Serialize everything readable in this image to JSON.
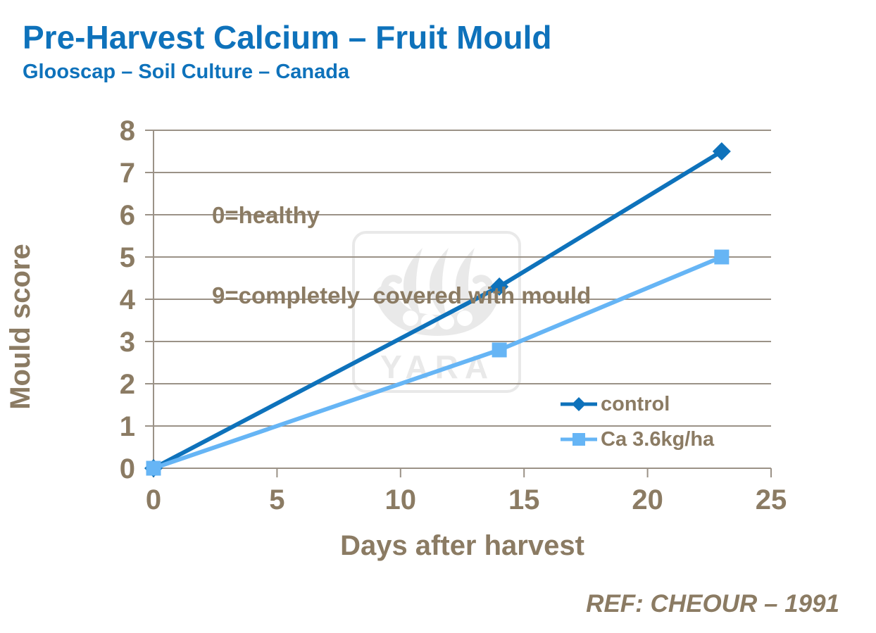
{
  "slide": {
    "title": "Pre-Harvest Calcium – Fruit Mould",
    "subtitle": "Glooscap – Soil Culture – Canada",
    "reference": "REF: CHEOUR – 1991",
    "watermark_text": "YARA"
  },
  "annotation": {
    "line1": "0=healthy",
    "line2": "9=completely  covered with mould"
  },
  "colors": {
    "heading_blue": "#0e72bb",
    "text_brown": "#8b7b63",
    "axis_gray": "#9b9287",
    "control_blue": "#0e72bb",
    "ca_light_blue": "#66b5f5",
    "watermark_gray": "#e9e9e9",
    "background": "#ffffff"
  },
  "chart_data": {
    "type": "line",
    "title": "",
    "xlabel": "Days after harvest",
    "ylabel": "Mould score",
    "x": [
      0,
      14,
      23
    ],
    "series": [
      {
        "name": "control",
        "marker": "diamond",
        "color": "#0e72bb",
        "values": [
          0,
          4.3,
          7.5
        ]
      },
      {
        "name": "Ca 3.6kg/ha",
        "marker": "square",
        "color": "#66b5f5",
        "values": [
          0,
          2.8,
          5.0
        ]
      }
    ],
    "xlim": [
      0,
      25
    ],
    "ylim": [
      0,
      8
    ],
    "xticks": [
      0,
      5,
      10,
      15,
      20,
      25
    ],
    "yticks": [
      0,
      1,
      2,
      3,
      4,
      5,
      6,
      7,
      8
    ],
    "grid": "horizontal-only",
    "legend_position": "inside-right-middle"
  }
}
